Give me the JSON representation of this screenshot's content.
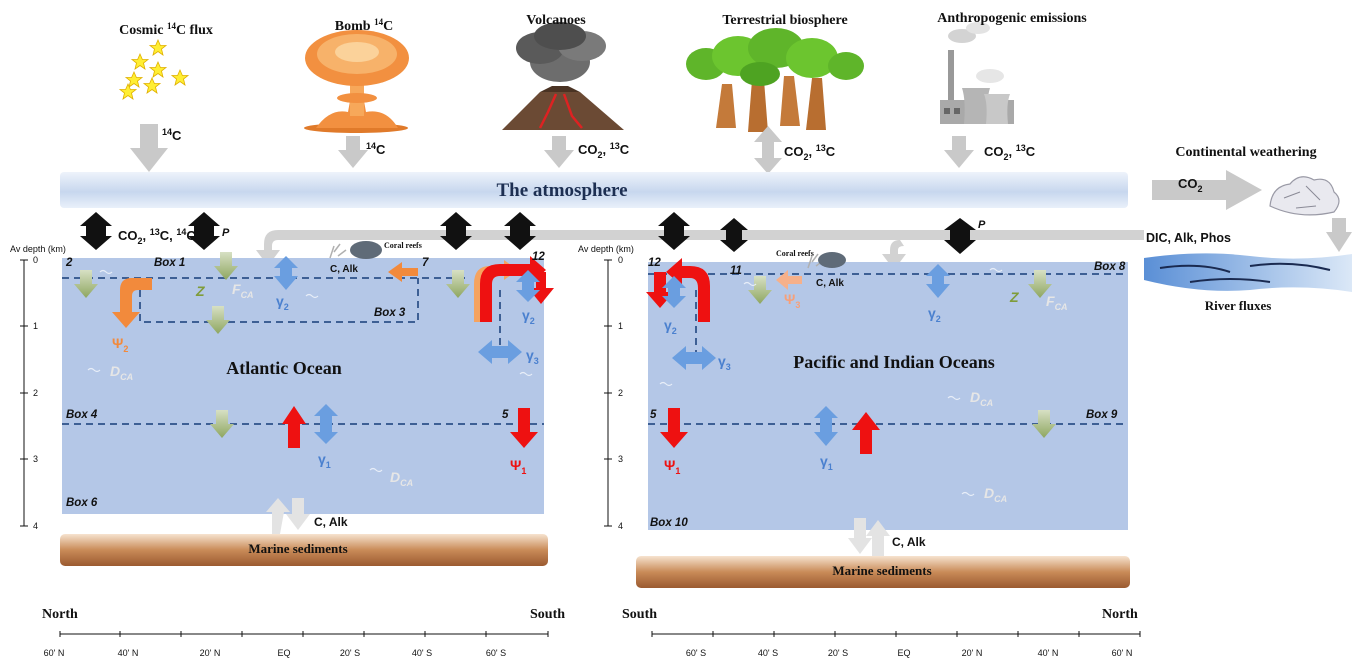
{
  "sources": {
    "cosmic": {
      "label": "Cosmic ",
      "sup": "14",
      "label2": "C flux",
      "arrow_sup": "14",
      "arrow_label": "C"
    },
    "bomb": {
      "label": "Bomb ",
      "sup": "14",
      "label2": "C",
      "arrow_sup": "14",
      "arrow_label": "C"
    },
    "volcanoes": {
      "label": "Volcanoes",
      "arrow_label": "CO",
      "arrow_sub": "2",
      "arrow_label2": ", ",
      "arrow_sup": "13",
      "arrow_label3": "C"
    },
    "terrestrial": {
      "label": "Terrestrial biosphere",
      "arrow_label": "CO",
      "arrow_sub": "2",
      "arrow_label2": ", ",
      "arrow_sup": "13",
      "arrow_label3": "C"
    },
    "anthropogenic": {
      "label": "Anthropogenic emissions",
      "arrow_label": "CO",
      "arrow_sub": "2",
      "arrow_label2": ", ",
      "arrow_sup": "13",
      "arrow_label3": "C"
    }
  },
  "atmosphere": {
    "label": "The atmosphere"
  },
  "weathering": {
    "label": "Continental weathering",
    "flux": "CO",
    "flux_sub": "2",
    "river_flux": "DIC, Alk, Phos",
    "river_label": "River fluxes"
  },
  "air_sea": {
    "left_label": "CO",
    "left_sub": "2",
    "left_label2": ", ",
    "left_sup1": "13",
    "left_label3": "C, ",
    "left_sup2": "14",
    "left_label4": "C",
    "p_label": "P"
  },
  "axis": {
    "title": "Av depth (km)",
    "ticks": [
      "0",
      "1",
      "2",
      "3",
      "4"
    ]
  },
  "atlantic": {
    "name": "Atlantic Ocean",
    "boxes": {
      "b1": "Box 1",
      "b3": "Box 3",
      "b4": "Box 4",
      "b6": "Box 6",
      "n2": "2",
      "n7": "7",
      "n12": "12",
      "n5": "5"
    },
    "labels": {
      "z": "Z",
      "f": "F",
      "f_sub": "CA",
      "d": "D",
      "d_sub": "CA",
      "d2": "D",
      "d2_sub": "CA",
      "psi2": "Ψ",
      "psi2_sub": "2",
      "psi1": "Ψ",
      "psi1_sub": "1",
      "g2a": "γ",
      "g2a_sub": "2",
      "g2b": "γ",
      "g2b_sub": "2",
      "g3": "γ",
      "g3_sub": "3",
      "g1": "γ",
      "g1_sub": "1"
    },
    "coral": "Coral reefs",
    "coral_flux": "C, Alk",
    "sed_flux": "C, Alk",
    "sediments": "Marine sediments",
    "ends": {
      "left": "North",
      "right": "South"
    },
    "lats": [
      "60' N",
      "40' N",
      "20' N",
      "EQ",
      "20' S",
      "40' S",
      "60' S"
    ]
  },
  "pacific": {
    "name": "Pacific and Indian Oceans",
    "boxes": {
      "b8": "Box 8",
      "b9": "Box 9",
      "b10": "Box 10",
      "n12": "12",
      "n11": "11",
      "n5": "5"
    },
    "labels": {
      "z": "Z",
      "f": "F",
      "f_sub": "CA",
      "d": "D",
      "d_sub": "CA",
      "d2": "D",
      "d2_sub": "CA",
      "psi3": "Ψ",
      "psi3_sub": "3",
      "psi1": "Ψ",
      "psi1_sub": "1",
      "g2a": "γ",
      "g2a_sub": "2",
      "g2b": "γ",
      "g2b_sub": "2",
      "g3": "γ",
      "g3_sub": "3",
      "g1": "γ",
      "g1_sub": "1"
    },
    "coral": "Coral reefs",
    "coral_flux": "C, Alk",
    "sed_flux": "C, Alk",
    "sediments": "Marine sediments",
    "ends": {
      "left": "South",
      "right": "North"
    },
    "lats": [
      "60' S",
      "40' S",
      "20' S",
      "EQ",
      "20' N",
      "40' N",
      "60' N"
    ]
  },
  "colors": {
    "ocean": "#b4c7e7",
    "box_line": "#3d5f94",
    "red": "#ee1111",
    "orange": "#f28a3c",
    "blue": "#5b8fd9",
    "green": "#9aaf6a",
    "black": "#111111",
    "sediment": "#a86a3e"
  }
}
